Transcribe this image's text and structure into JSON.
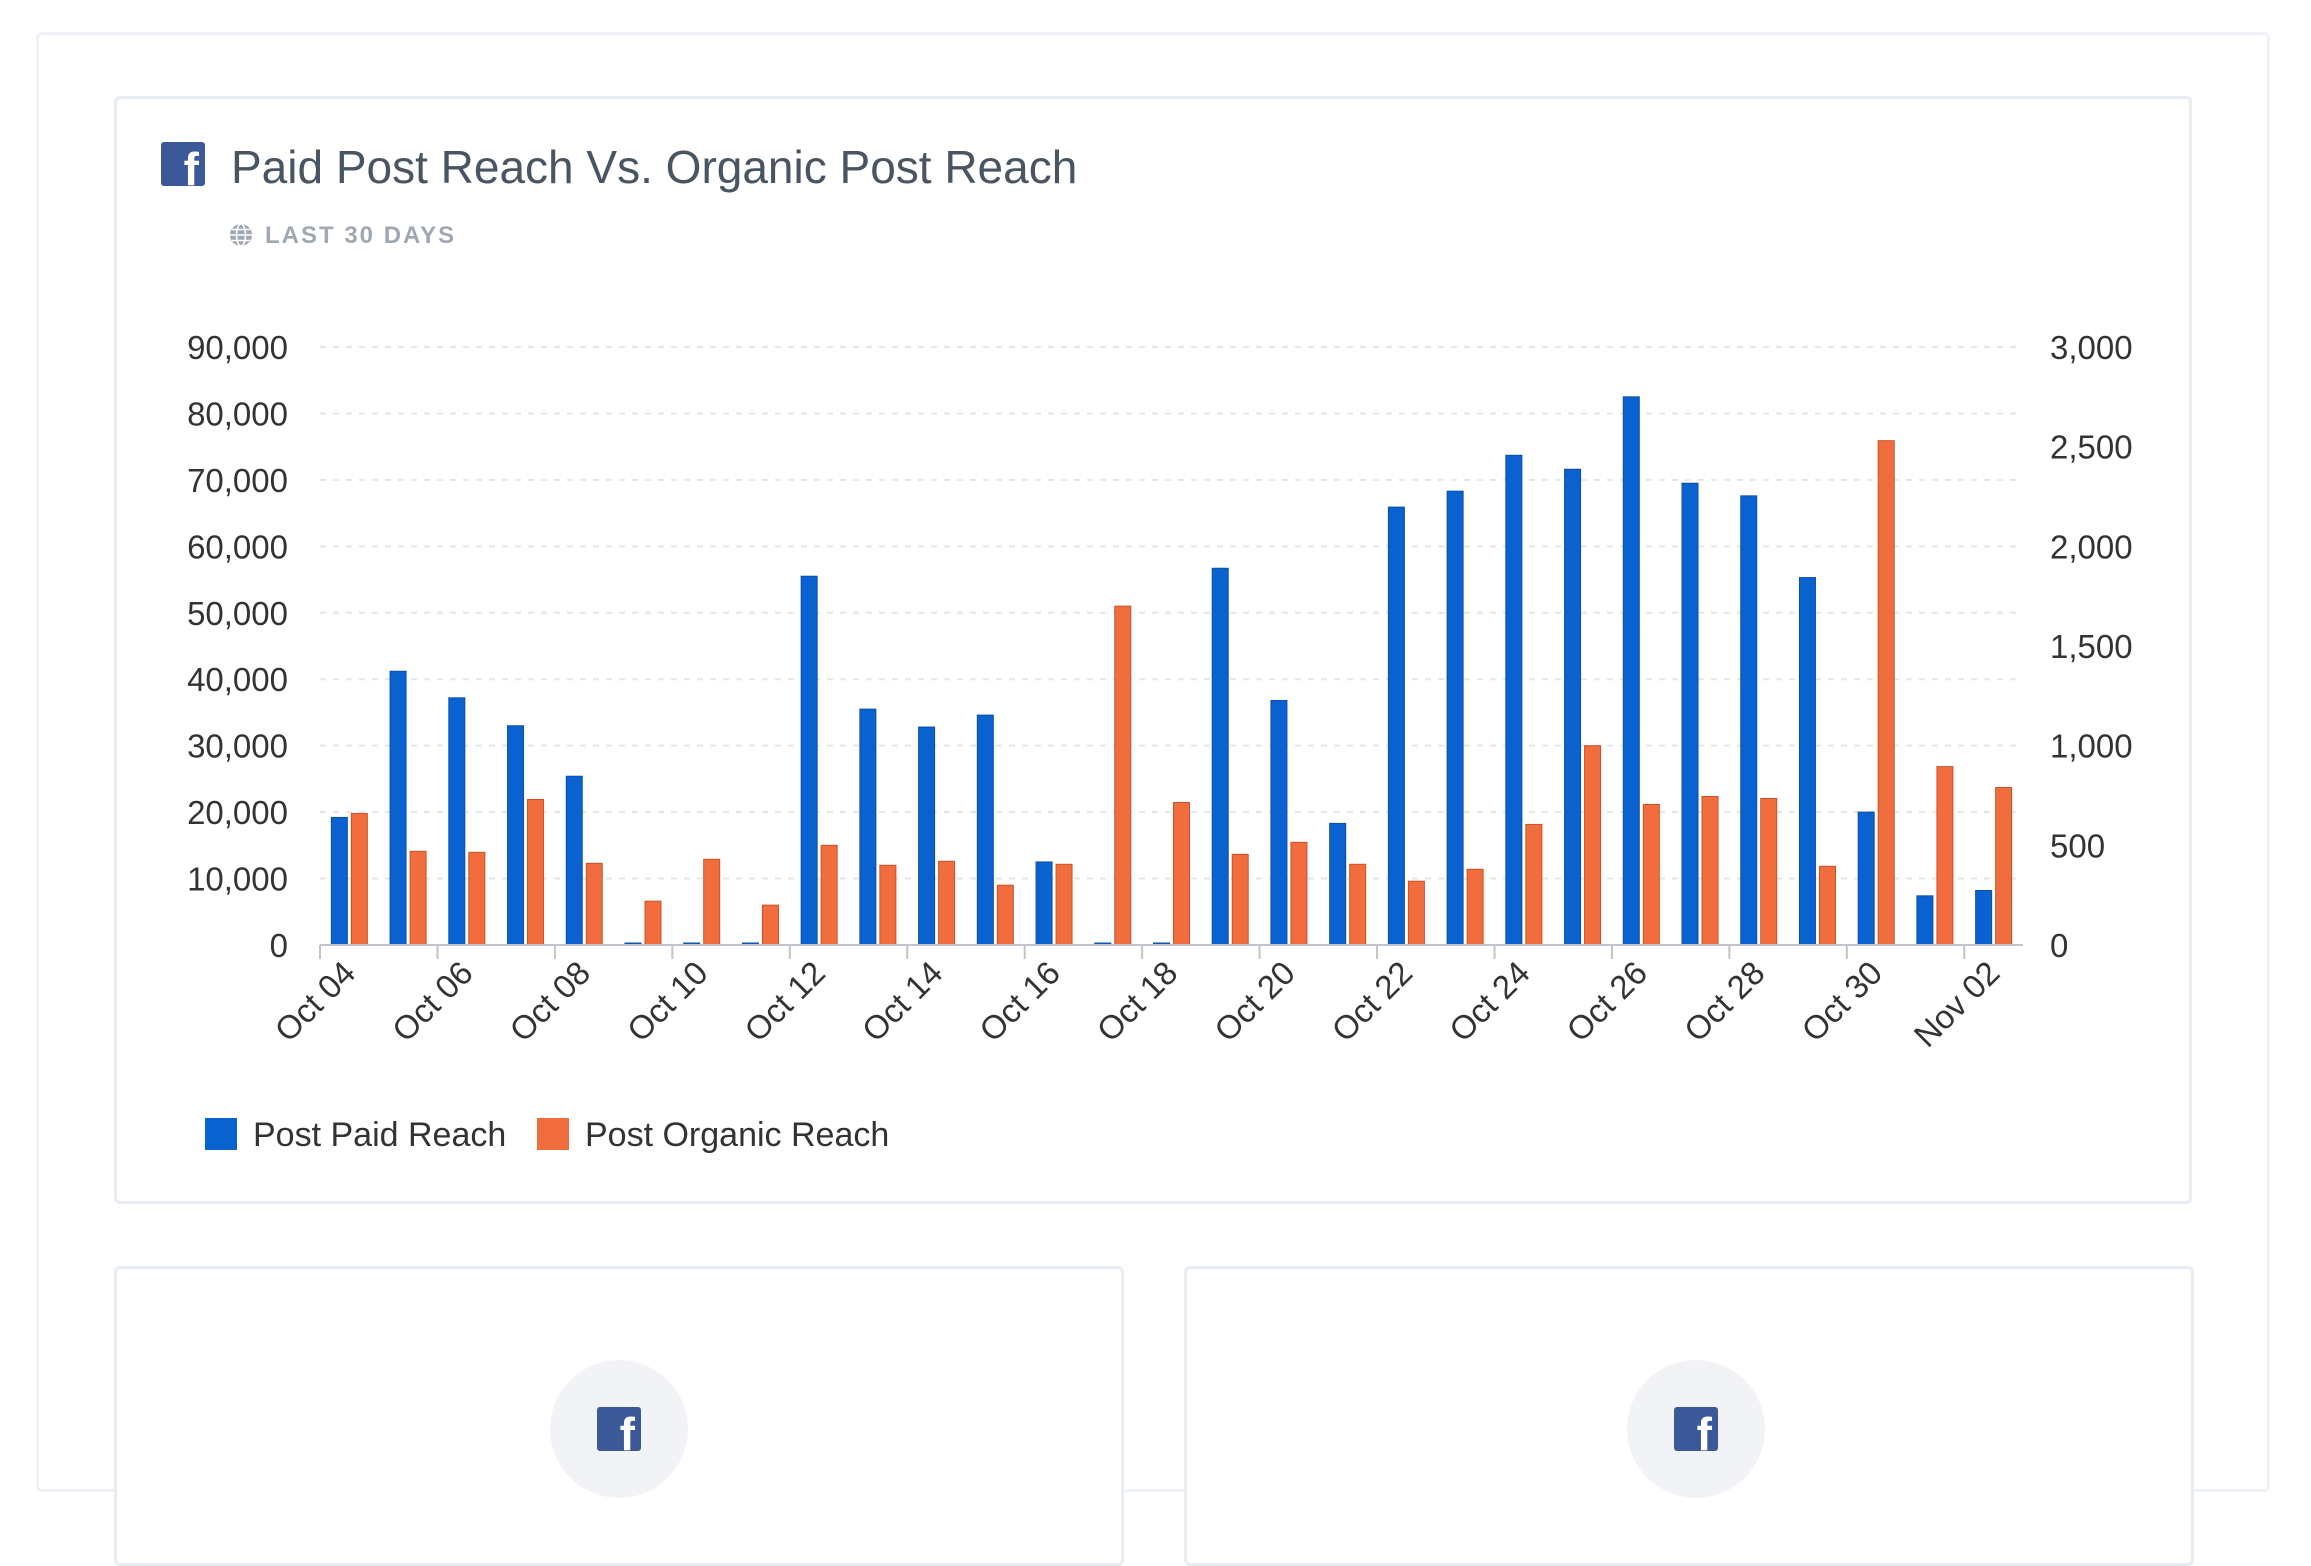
{
  "card": {
    "title": "Paid Post Reach Vs. Organic Post Reach",
    "subtitle": "LAST 30 DAYS",
    "icon": "facebook-icon"
  },
  "chart_data": {
    "type": "bar",
    "categories": [
      "Oct 04",
      "Oct 05",
      "Oct 06",
      "Oct 07",
      "Oct 08",
      "Oct 09",
      "Oct 10",
      "Oct 11",
      "Oct 12",
      "Oct 13",
      "Oct 14",
      "Oct 15",
      "Oct 16",
      "Oct 17",
      "Oct 18",
      "Oct 19",
      "Oct 20",
      "Oct 21",
      "Oct 22",
      "Oct 23",
      "Oct 24",
      "Oct 25",
      "Oct 26",
      "Oct 27",
      "Oct 28",
      "Oct 29",
      "Oct 30",
      "Nov 01",
      "Nov 02"
    ],
    "tick_labels": [
      "Oct 04",
      "Oct 06",
      "Oct 08",
      "Oct 10",
      "Oct 12",
      "Oct 14",
      "Oct 16",
      "Oct 18",
      "Oct 20",
      "Oct 22",
      "Oct 24",
      "Oct 26",
      "Oct 28",
      "Oct 30",
      "Nov 02"
    ],
    "series": [
      {
        "name": "Post Paid Reach",
        "axis": "left",
        "color": "#0a62d1",
        "values": [
          19200,
          41200,
          37200,
          33000,
          25400,
          300,
          300,
          300,
          55500,
          35500,
          32800,
          34600,
          12500,
          300,
          300,
          56700,
          36800,
          18300,
          65900,
          68300,
          73700,
          71600,
          82500,
          69500,
          67600,
          55300,
          20000,
          7400,
          8200
        ]
      },
      {
        "name": "Post Organic Reach",
        "axis": "right",
        "color": "#f26d3d",
        "values": [
          660,
          470,
          465,
          730,
          410,
          220,
          430,
          200,
          500,
          400,
          420,
          300,
          405,
          1700,
          715,
          455,
          515,
          405,
          320,
          380,
          605,
          1000,
          705,
          745,
          735,
          395,
          2530,
          895,
          790
        ]
      }
    ],
    "y_left": {
      "min": 0,
      "max": 90000,
      "ticks": [
        "0",
        "10,000",
        "20,000",
        "30,000",
        "40,000",
        "50,000",
        "60,000",
        "70,000",
        "80,000",
        "90,000"
      ]
    },
    "y_right": {
      "min": 0,
      "max": 3000,
      "ticks": [
        "0",
        "500",
        "1,000",
        "1,500",
        "2,000",
        "2,500",
        "3,000"
      ]
    },
    "grid": true,
    "legend": "bottom-left"
  }
}
